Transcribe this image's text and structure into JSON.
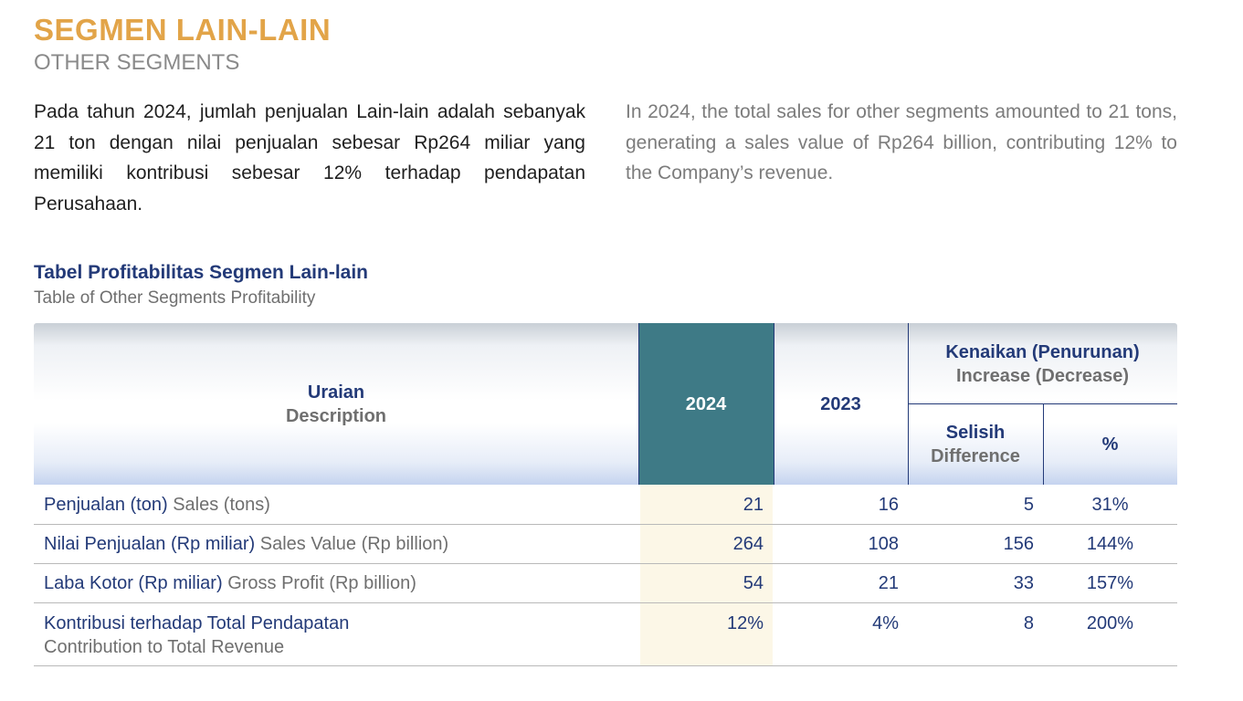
{
  "header": {
    "title_id": "SEGMEN LAIN-LAIN",
    "title_en": "OTHER SEGMENTS"
  },
  "paragraphs": {
    "id": "Pada tahun 2024, jumlah penjualan Lain-lain adalah sebanyak 21 ton dengan nilai penjualan sebesar Rp264 miliar yang memiliki kontribusi sebesar 12% terhadap pendapatan Perusahaan.",
    "en": "In 2024, the total sales for other segments amounted to 21 tons, generating a sales value of Rp264 billion, contributing 12% to the Company’s revenue."
  },
  "table": {
    "title_id": "Tabel Profitabilitas Segmen Lain-lain",
    "title_en": "Table of Other Segments Profitability",
    "headers": {
      "desc_id": "Uraian",
      "desc_en": "Description",
      "y2024": "2024",
      "y2023": "2023",
      "change_id": "Kenaikan (Penurunan)",
      "change_en": "Increase (Decrease)",
      "diff_id": "Selisih",
      "diff_en": "Difference",
      "pct": "%"
    },
    "rows": [
      {
        "label_id": "Penjualan (ton)",
        "label_en": "Sales (tons)",
        "y2024": "21",
        "y2023": "16",
        "diff": "5",
        "pct": "31%"
      },
      {
        "label_id": "Nilai Penjualan (Rp miliar)",
        "label_en": "Sales Value (Rp billion)",
        "y2024": "264",
        "y2023": "108",
        "diff": "156",
        "pct": "144%"
      },
      {
        "label_id": "Laba Kotor (Rp miliar)",
        "label_en": "Gross Profit (Rp billion)",
        "y2024": "54",
        "y2023": "21",
        "diff": "33",
        "pct": "157%"
      },
      {
        "label_id": "Kontribusi terhadap Total Pendapatan",
        "label_en": "Contribution to Total Revenue",
        "y2024": "12%",
        "y2023": "4%",
        "diff": "8",
        "pct": "200%"
      }
    ]
  },
  "colors": {
    "accent_gold": "#E2A448",
    "navy": "#233a78",
    "teal_header": "#3e7a86",
    "highlight_column": "#fcf7e7"
  }
}
